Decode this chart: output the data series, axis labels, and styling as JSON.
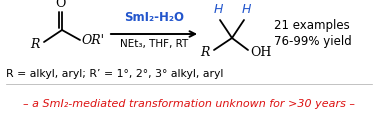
{
  "bg_color": "#ffffff",
  "reagent_color": "#2255cc",
  "italic_red_color": "#dd1111",
  "arrow_reagent": "SmI₂-H₂O",
  "arrow_condition": "NEt₃, THF, RT",
  "examples_text": "21 examples",
  "yield_text": "76-99% yield",
  "R_def": "R = alkyl, aryl; R’ = 1°, 2°, 3° alkyl, aryl",
  "italic_text": "– a SmI₂-mediated transformation unknown for >30 years –",
  "figw": 3.78,
  "figh": 1.2,
  "dpi": 100
}
